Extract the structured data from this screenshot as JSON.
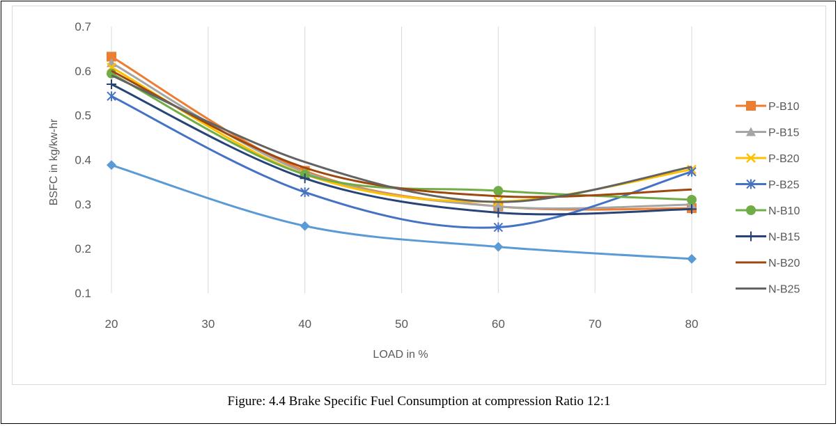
{
  "caption": "Figure: 4.4 Brake Specific Fuel  Consumption at compression Ratio 12:1",
  "chart_data": {
    "type": "line",
    "title": "",
    "xlabel": "LOAD in %",
    "ylabel": "BSFC in kg/kw-hr",
    "xlim": [
      20,
      80
    ],
    "ylim": [
      0.1,
      0.7
    ],
    "xticks": [
      20,
      30,
      40,
      50,
      60,
      70,
      80
    ],
    "yticks": [
      0.1,
      0.2,
      0.3,
      0.4,
      0.5,
      0.6,
      0.7
    ],
    "ytick_labels": [
      "0.1",
      "0.2",
      "0.3",
      "0.4",
      "0.5",
      "0.6",
      "0.7"
    ],
    "grid": "vertical",
    "legend_position": "right",
    "x": [
      20,
      40,
      60,
      80
    ],
    "series": [
      {
        "name": "",
        "color": "#5b9bd5",
        "marker": "diamond",
        "values": [
          0.388,
          0.251,
          0.204,
          0.177
        ]
      },
      {
        "name": "P-B10",
        "color": "#ed7d31",
        "marker": "square",
        "values": [
          0.632,
          0.375,
          0.295,
          0.291
        ]
      },
      {
        "name": "P-B15",
        "color": "#a5a5a5",
        "marker": "triangle",
        "values": [
          0.618,
          0.372,
          0.295,
          0.299
        ]
      },
      {
        "name": "P-B20",
        "color": "#ffc000",
        "marker": "x",
        "values": [
          0.608,
          0.367,
          0.306,
          0.378
        ]
      },
      {
        "name": "P-B25",
        "color": "#4472c4",
        "marker": "star",
        "values": [
          0.543,
          0.327,
          0.248,
          0.373
        ]
      },
      {
        "name": "N-B10",
        "color": "#70ad47",
        "marker": "circle",
        "values": [
          0.594,
          0.367,
          0.33,
          0.31
        ]
      },
      {
        "name": "N-B15",
        "color": "#264478",
        "marker": "plus",
        "values": [
          0.57,
          0.358,
          0.281,
          0.289
        ]
      },
      {
        "name": "N-B20",
        "color": "#9e480e",
        "marker": "none",
        "values": [
          0.6,
          0.382,
          0.318,
          0.333
        ]
      },
      {
        "name": "N-B25",
        "color": "#636363",
        "marker": "none",
        "values": [
          0.59,
          0.395,
          0.305,
          0.384
        ]
      }
    ]
  }
}
